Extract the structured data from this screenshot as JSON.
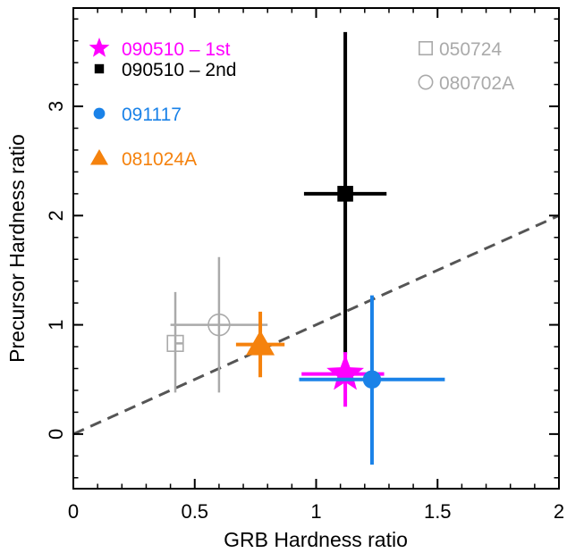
{
  "chart_data": {
    "type": "scatter",
    "xlabel": "GRB Hardness ratio",
    "ylabel": "Precursor Hardness ratio",
    "xlim": [
      0,
      2
    ],
    "ylim": [
      -0.5,
      3.9
    ],
    "x_ticks": [
      "0",
      "0.5",
      "1",
      "1.5",
      "2"
    ],
    "y_ticks": [
      "0",
      "1",
      "2",
      "3"
    ],
    "grid": false,
    "reference_line": {
      "style": "dashed",
      "color": "#555555",
      "x": [
        0,
        2
      ],
      "y": [
        0,
        2
      ]
    },
    "series": [
      {
        "name": "090510 – 1st",
        "marker": "star",
        "color": "#ff00ff",
        "x": 1.12,
        "y": 0.55,
        "x_err": [
          0.18,
          0.16
        ],
        "y_err": [
          0.3,
          0.2
        ],
        "legend_group": "left"
      },
      {
        "name": "090510 – 2nd",
        "marker": "square",
        "color": "#000000",
        "x": 1.12,
        "y": 2.2,
        "x_err": [
          0.17,
          0.17
        ],
        "y_err": [
          1.47,
          1.48
        ],
        "legend_group": "left"
      },
      {
        "name": "091117",
        "marker": "circle",
        "color": "#1a82e8",
        "x": 1.23,
        "y": 0.5,
        "x_err": [
          0.3,
          0.3
        ],
        "y_err": [
          0.78,
          0.77
        ],
        "legend_group": "left"
      },
      {
        "name": "081024A",
        "marker": "triangle",
        "color": "#f5820d",
        "x": 0.77,
        "y": 0.82,
        "x_err": [
          0.1,
          0.1
        ],
        "y_err": [
          0.3,
          0.3
        ],
        "legend_group": "left"
      },
      {
        "name": "050724",
        "marker": "open-square",
        "color": "#aaaaaa",
        "x": 0.42,
        "y": 0.83,
        "x_err": [
          0.0,
          0.03
        ],
        "y_err": [
          0.45,
          0.47
        ],
        "legend_group": "right"
      },
      {
        "name": "080702A",
        "marker": "open-circle",
        "color": "#aaaaaa",
        "x": 0.6,
        "y": 1.0,
        "x_err": [
          0.2,
          0.2
        ],
        "y_err": [
          0.62,
          0.62
        ],
        "legend_group": "right"
      }
    ]
  }
}
